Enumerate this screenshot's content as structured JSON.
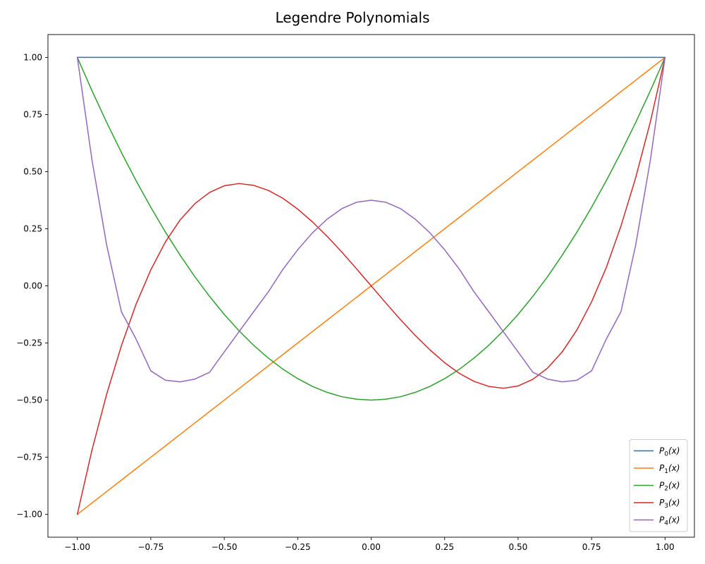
{
  "chart_data": {
    "type": "line",
    "title": "Legendre Polynomials",
    "xlabel": "",
    "ylabel": "",
    "xlim": [
      -1.1,
      1.1
    ],
    "ylim": [
      -1.1,
      1.1
    ],
    "x_ticks": [
      -1.0,
      -0.75,
      -0.5,
      -0.25,
      0.0,
      0.25,
      0.5,
      0.75,
      1.0
    ],
    "x_tick_labels": [
      "−1.00",
      "−0.75",
      "−0.50",
      "−0.25",
      "0.00",
      "0.25",
      "0.50",
      "0.75",
      "1.00"
    ],
    "y_ticks": [
      1.0,
      0.75,
      0.5,
      0.25,
      0.0,
      -0.25,
      -0.5,
      -0.75,
      -1.0
    ],
    "y_tick_labels": [
      "1.00",
      "0.75",
      "0.50",
      "0.25",
      "0.00",
      "−0.25",
      "−0.50",
      "−0.75",
      "−1.00"
    ],
    "grid": false,
    "legend_position": "lower-right",
    "x": [
      -1.0,
      -0.95,
      -0.9,
      -0.85,
      -0.8,
      -0.75,
      -0.7,
      -0.65,
      -0.6,
      -0.55,
      -0.5,
      -0.45,
      -0.4,
      -0.35,
      -0.3,
      -0.25,
      -0.2,
      -0.15,
      -0.1,
      -0.05,
      0.0,
      0.05,
      0.1,
      0.15,
      0.2,
      0.25,
      0.3,
      0.35,
      0.4,
      0.45,
      0.5,
      0.55,
      0.6,
      0.65,
      0.7,
      0.75,
      0.8,
      0.85,
      0.9,
      0.95,
      1.0
    ],
    "series": [
      {
        "name_main": "P",
        "name_sub": "0",
        "name_tail": "(x)",
        "color": "#1f77b4",
        "values": [
          1.0,
          1.0,
          1.0,
          1.0,
          1.0,
          1.0,
          1.0,
          1.0,
          1.0,
          1.0,
          1.0,
          1.0,
          1.0,
          1.0,
          1.0,
          1.0,
          1.0,
          1.0,
          1.0,
          1.0,
          1.0,
          1.0,
          1.0,
          1.0,
          1.0,
          1.0,
          1.0,
          1.0,
          1.0,
          1.0,
          1.0,
          1.0,
          1.0,
          1.0,
          1.0,
          1.0,
          1.0,
          1.0,
          1.0,
          1.0,
          1.0
        ]
      },
      {
        "name_main": "P",
        "name_sub": "1",
        "name_tail": "(x)",
        "color": "#ff7f0e",
        "values": [
          -1.0,
          -0.95,
          -0.9,
          -0.85,
          -0.8,
          -0.75,
          -0.7,
          -0.65,
          -0.6,
          -0.55,
          -0.5,
          -0.45,
          -0.4,
          -0.35,
          -0.3,
          -0.25,
          -0.2,
          -0.15,
          -0.1,
          -0.05,
          0.0,
          0.05,
          0.1,
          0.15,
          0.2,
          0.25,
          0.3,
          0.35,
          0.4,
          0.45,
          0.5,
          0.55,
          0.6,
          0.65,
          0.7,
          0.75,
          0.8,
          0.85,
          0.9,
          0.95,
          1.0
        ]
      },
      {
        "name_main": "P",
        "name_sub": "2",
        "name_tail": "(x)",
        "color": "#2ca02c",
        "values": [
          1.0,
          0.854,
          0.715,
          0.584,
          0.46,
          0.344,
          0.235,
          0.134,
          0.04,
          -0.046,
          -0.125,
          -0.196,
          -0.26,
          -0.316,
          -0.365,
          -0.406,
          -0.44,
          -0.466,
          -0.485,
          -0.496,
          -0.5,
          -0.496,
          -0.485,
          -0.466,
          -0.44,
          -0.406,
          -0.365,
          -0.316,
          -0.26,
          -0.196,
          -0.125,
          -0.046,
          0.04,
          0.134,
          0.235,
          0.344,
          0.46,
          0.584,
          0.715,
          0.854,
          1.0
        ]
      },
      {
        "name_main": "P",
        "name_sub": "3",
        "name_tail": "(x)",
        "color": "#d62728",
        "values": [
          -1.0,
          -0.718,
          -0.473,
          -0.262,
          -0.08,
          0.07,
          0.193,
          0.289,
          0.36,
          0.409,
          0.438,
          0.448,
          0.44,
          0.418,
          0.383,
          0.336,
          0.28,
          0.217,
          0.148,
          0.075,
          0.0,
          -0.075,
          -0.148,
          -0.217,
          -0.28,
          -0.336,
          -0.383,
          -0.418,
          -0.44,
          -0.448,
          -0.438,
          -0.409,
          -0.36,
          -0.289,
          -0.193,
          -0.07,
          0.08,
          0.262,
          0.473,
          0.718,
          1.0
        ]
      },
      {
        "name_main": "P",
        "name_sub": "4",
        "name_tail": "(x)",
        "color": "#9467bd",
        "values": [
          1.0,
          0.55,
          0.178,
          -0.113,
          -0.233,
          -0.372,
          -0.413,
          -0.42,
          -0.408,
          -0.378,
          -0.289,
          -0.201,
          -0.113,
          -0.026,
          0.073,
          0.158,
          0.232,
          0.292,
          0.338,
          0.366,
          0.375,
          0.366,
          0.338,
          0.292,
          0.232,
          0.158,
          0.073,
          -0.026,
          -0.113,
          -0.201,
          -0.289,
          -0.378,
          -0.408,
          -0.42,
          -0.413,
          -0.372,
          -0.233,
          -0.113,
          0.178,
          0.55,
          1.0
        ]
      }
    ]
  }
}
